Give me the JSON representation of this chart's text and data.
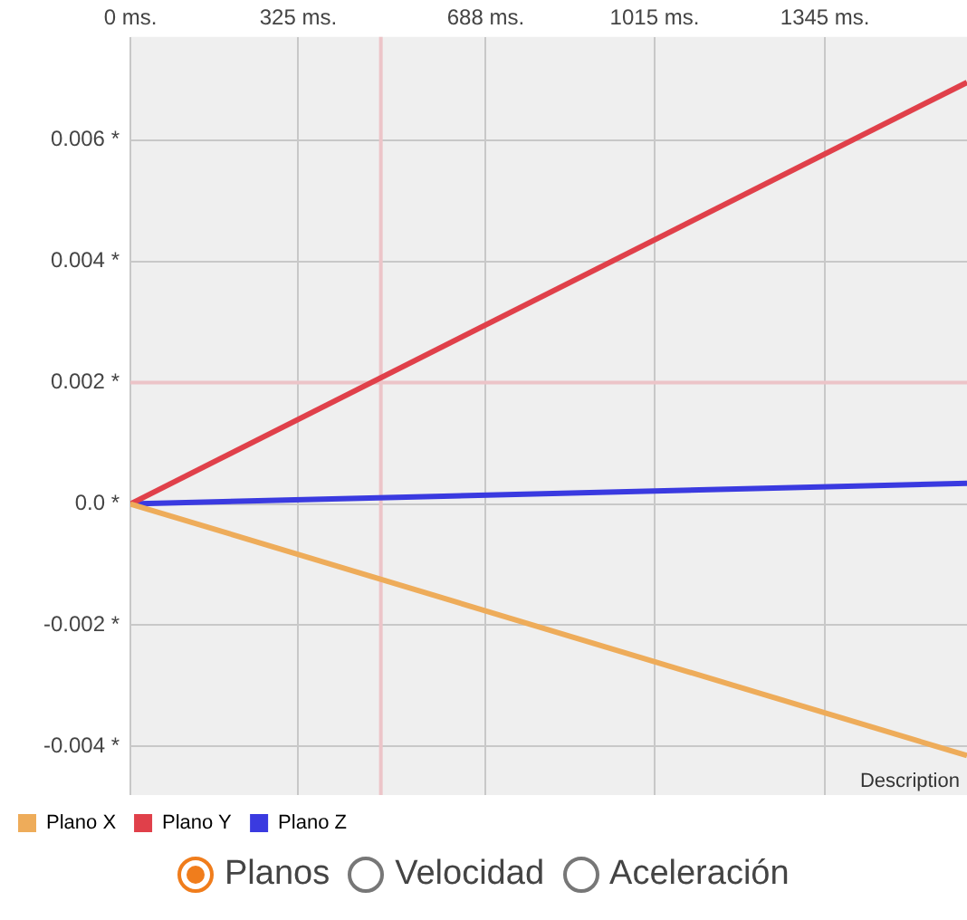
{
  "chart_data": {
    "type": "line",
    "x": [
      0,
      1620
    ],
    "xlim": [
      0,
      1620
    ],
    "xticks": [
      {
        "value": 0,
        "label": "0 ms."
      },
      {
        "value": 325,
        "label": "325 ms."
      },
      {
        "value": 688,
        "label": "688 ms."
      },
      {
        "value": 1015,
        "label": "1015 ms."
      },
      {
        "value": 1345,
        "label": "1345 ms."
      }
    ],
    "ylim": [
      -0.0048,
      0.0077
    ],
    "yticks": [
      {
        "value": -0.004,
        "label": "-0.004 *"
      },
      {
        "value": -0.002,
        "label": "-0.002 *"
      },
      {
        "value": 0,
        "label": "0.0 *"
      },
      {
        "value": 0.002,
        "label": "0.002 *"
      },
      {
        "value": 0.004,
        "label": "0.004 *"
      },
      {
        "value": 0.006,
        "label": "0.006 *"
      }
    ],
    "series": [
      {
        "name": "Plano X",
        "color": "#eeac5a",
        "values": [
          0,
          -0.00415
        ]
      },
      {
        "name": "Plano Y",
        "color": "#e0404a",
        "values": [
          0,
          0.00695
        ]
      },
      {
        "name": "Plano Z",
        "color": "#3a3ae0",
        "values": [
          0,
          0.00034
        ]
      }
    ],
    "ref_lines": [
      {
        "axis": "x",
        "value": 485,
        "color": "#ecc4c8"
      },
      {
        "axis": "y",
        "value": 0.002,
        "color": "#ecc4c8"
      }
    ],
    "grid": true,
    "legend": "bottom left",
    "marker": "none",
    "line_style": "solid",
    "annotations": [
      "Description",
      "Planos",
      "Velocidad",
      "Aceleración"
    ]
  }
}
